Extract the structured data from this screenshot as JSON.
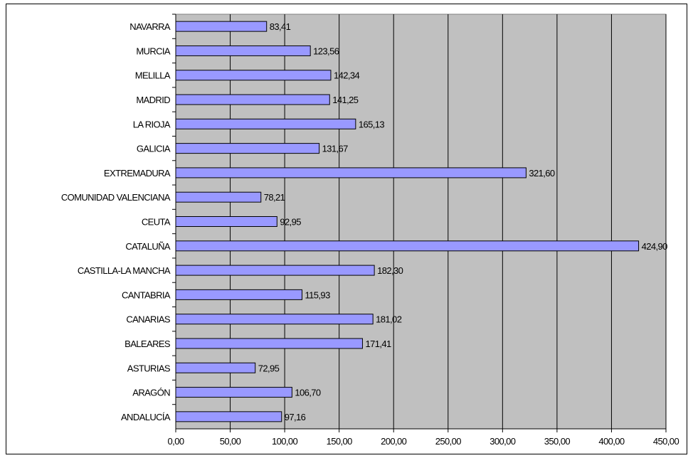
{
  "chart_data": {
    "type": "bar",
    "orientation": "horizontal",
    "title": "",
    "xlabel": "",
    "ylabel": "",
    "xlim": [
      0,
      450
    ],
    "x_ticks": [
      "0,00",
      "50,00",
      "100,00",
      "150,00",
      "200,00",
      "250,00",
      "300,00",
      "350,00",
      "400,00",
      "450,00"
    ],
    "grid": true,
    "plot_background": "#c0c0c0",
    "bar_color": "#9999ff",
    "bar_border_color": "#000000",
    "categories": [
      "NAVARRA",
      "MURCIA",
      "MELILLA",
      "MADRID",
      "LA RIOJA",
      "GALICIA",
      "EXTREMADURA",
      "COMUNIDAD VALENCIANA",
      "CEUTA",
      "CATALUÑA",
      "CASTILLA-LA MANCHA",
      "CANTABRIA",
      "CANARIAS",
      "BALEARES",
      "ASTURIAS",
      "ARAGÓN",
      "ANDALUCÍA"
    ],
    "values": [
      83.41,
      123.56,
      142.34,
      141.25,
      165.13,
      131.67,
      321.6,
      78.21,
      92.95,
      424.9,
      182.3,
      115.93,
      181.02,
      171.41,
      72.95,
      106.7,
      97.16
    ],
    "value_labels": [
      "83,41",
      "123,56",
      "142,34",
      "141,25",
      "165,13",
      "131,67",
      "321,60",
      "78,21",
      "92,95",
      "424,90",
      "182,30",
      "115,93",
      "181,02",
      "171,41",
      "72,95",
      "106,70",
      "97,16"
    ]
  }
}
